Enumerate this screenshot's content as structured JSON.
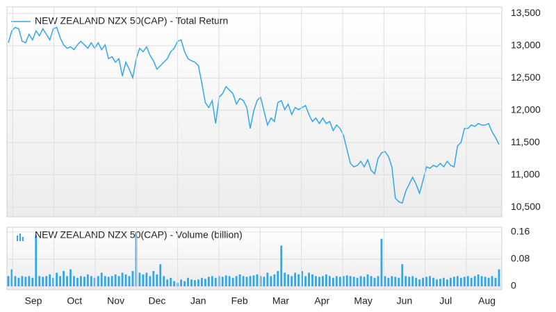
{
  "chart_data": [
    {
      "type": "line",
      "series": [
        {
          "name": "NEW ZEALAND NZX 50(CAP) - Total Return",
          "color": "#2ea8e8",
          "values": [
            13046,
            13230,
            13284,
            13262,
            13068,
            13046,
            13176,
            13090,
            13230,
            13154,
            13262,
            13176,
            13090,
            13262,
            13284,
            13122,
            13014,
            12960,
            12982,
            12938,
            13014,
            13068,
            13014,
            12960,
            13046,
            12960,
            13046,
            12938,
            13014,
            12798,
            12830,
            12744,
            12798,
            12528,
            12744,
            12636,
            12506,
            12798,
            12960,
            12906,
            12982,
            12852,
            12766,
            12636,
            12690,
            12744,
            12798,
            12906,
            12960,
            13068,
            13090,
            12906,
            12798,
            12766,
            12744,
            12690,
            12420,
            12118,
            12042,
            12150,
            11794,
            12204,
            12258,
            12366,
            12312,
            12258,
            12096,
            12182,
            12150,
            12042,
            11718,
            11988,
            12150,
            12204,
            11988,
            11772,
            11880,
            11826,
            12118,
            12150,
            12010,
            12096,
            11934,
            12042,
            12010,
            12042,
            12074,
            11934,
            11826,
            11880,
            11794,
            11880,
            11794,
            11826,
            11686,
            11772,
            11718,
            11610,
            11394,
            11178,
            11124,
            11146,
            11210,
            11124,
            11232,
            11070,
            11016,
            11254,
            11340,
            11362,
            11286,
            11124,
            10638,
            10584,
            10562,
            10746,
            10854,
            10962,
            10854,
            10714,
            10908,
            11124,
            11102,
            11146,
            11124,
            11178,
            11124,
            11210,
            11146,
            11124,
            11448,
            11502,
            11718,
            11718,
            11772,
            11750,
            11794,
            11772,
            11772,
            11794,
            11664,
            11578,
            11470
          ]
        }
      ],
      "ylim": [
        10350,
        13600
      ],
      "yticks": [
        {
          "value": 10500,
          "label": "10,500"
        },
        {
          "value": 11000,
          "label": "11,000"
        },
        {
          "value": 11500,
          "label": "11,500"
        },
        {
          "value": 12000,
          "label": "12,000"
        },
        {
          "value": 12500,
          "label": "12,500"
        },
        {
          "value": 13000,
          "label": "13,000"
        },
        {
          "value": 13500,
          "label": "13,500"
        }
      ],
      "grid": true
    },
    {
      "type": "bar",
      "series": [
        {
          "name": "NEW ZEALAND NZX 50(CAP) - Volume (billion)",
          "color": "#2ea8e8",
          "values": [
            0.03,
            0.05,
            0.03,
            0.025,
            0.03,
            0.028,
            0.03,
            0.025,
            0.15,
            0.03,
            0.028,
            0.03,
            0.035,
            0.025,
            0.04,
            0.03,
            0.045,
            0.03,
            0.05,
            0.03,
            0.025,
            0.03,
            0.028,
            0.035,
            0.03,
            0.025,
            0.03,
            0.04,
            0.03,
            0.028,
            0.03,
            0.035,
            0.03,
            0.04,
            0.035,
            0.03,
            0.045,
            0.16,
            0.04,
            0.035,
            0.04,
            0.03,
            0.045,
            0.035,
            0.065,
            0.03,
            0.02,
            0.025,
            0.015,
            0.01,
            0.02,
            0.015,
            0.025,
            0.02,
            0.018,
            0.02,
            0.025,
            0.022,
            0.028,
            0.03,
            0.025,
            0.03,
            0.028,
            0.032,
            0.03,
            0.025,
            0.03,
            0.035,
            0.03,
            0.028,
            0.03,
            0.032,
            0.035,
            0.03,
            0.028,
            0.04,
            0.03,
            0.035,
            0.045,
            0.12,
            0.04,
            0.035,
            0.03,
            0.04,
            0.035,
            0.045,
            0.03,
            0.04,
            0.035,
            0.03,
            0.028,
            0.03,
            0.035,
            0.03,
            0.025,
            0.03,
            0.028,
            0.03,
            0.032,
            0.03,
            0.028,
            0.025,
            0.03,
            0.028,
            0.035,
            0.03,
            0.025,
            0.03,
            0.14,
            0.03,
            0.025,
            0.03,
            0.028,
            0.025,
            0.065,
            0.03,
            0.028,
            0.03,
            0.025,
            0.02,
            0.025,
            0.028,
            0.03,
            0.025,
            0.02,
            0.022,
            0.025,
            0.02,
            0.025,
            0.028,
            0.03,
            0.025,
            0.028,
            0.03,
            0.025,
            0.03,
            0.035,
            0.03,
            0.028,
            0.025,
            0.03,
            0.025,
            0.05
          ]
        }
      ],
      "ylim": [
        0,
        0.174
      ],
      "yticks": [
        0,
        0.08,
        0.16
      ],
      "xticks": [
        "Sep",
        "Oct",
        "Nov",
        "Dec",
        "Jan",
        "Feb",
        "Mar",
        "Apr",
        "May",
        "Jun",
        "Jul",
        "Aug"
      ],
      "grid": true
    }
  ]
}
